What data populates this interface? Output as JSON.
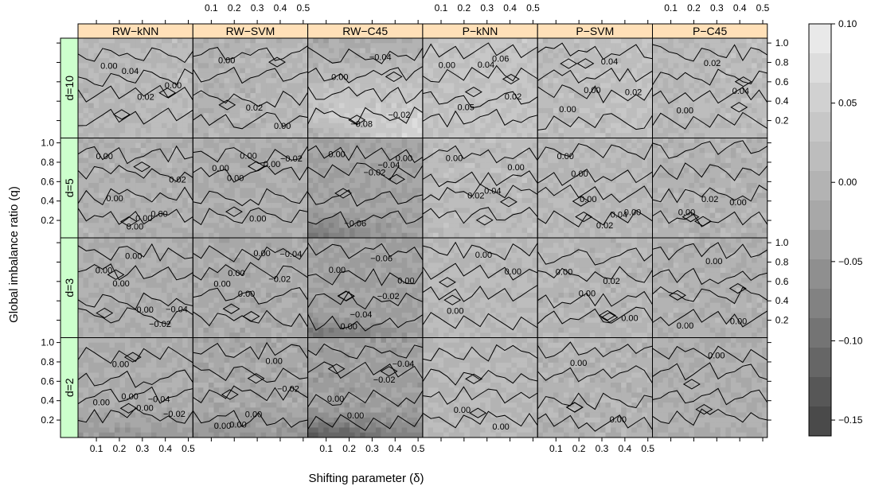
{
  "chart_data": {
    "type": "heatmap",
    "subtype": "trellis-levelplot-with-contours",
    "xlabel": "Shifting parameter (δ)",
    "ylabel": "Global imbalance ratio (q)",
    "x_ticks": [
      "0.1",
      "0.2",
      "0.3",
      "0.4",
      "0.5"
    ],
    "x_tick_values": [
      0.1,
      0.2,
      0.3,
      0.4,
      0.5
    ],
    "y_ticks": [
      "0.2",
      "0.4",
      "0.6",
      "0.8",
      "1.0"
    ],
    "y_tick_values": [
      0.2,
      0.4,
      0.6,
      0.8,
      1.0
    ],
    "xlim": [
      0.02,
      0.52
    ],
    "ylim": [
      0.02,
      1.05
    ],
    "columns": [
      "RW−kNN",
      "RW−SVM",
      "RW−C45",
      "P−kNN",
      "P−SVM",
      "P−C45"
    ],
    "rows": [
      "d=10",
      "d=5",
      "d=3",
      "d=2"
    ],
    "colorbar": {
      "ticks": [
        "0.10",
        "0.05",
        "0.00",
        "−0.05",
        "−0.10",
        "−0.15"
      ],
      "tick_values": [
        0.1,
        0.05,
        0.0,
        -0.05,
        -0.1,
        -0.15
      ],
      "range": [
        -0.16,
        0.1
      ],
      "colors": [
        "#e9e9e9",
        "#dddddd",
        "#d1d1d1",
        "#c7c7c7",
        "#bdbdbd",
        "#b3b3b3",
        "#a8a8a8",
        "#9c9c9c",
        "#8f8f8f",
        "#828282",
        "#747474",
        "#666666",
        "#575757",
        "#4a4a4a"
      ]
    },
    "panels": [
      {
        "row": "d=10",
        "column": "RW−kNN",
        "contour_labels": [
          "0.00",
          "0.04",
          "0.02",
          "0.00"
        ]
      },
      {
        "row": "d=10",
        "column": "RW−SVM",
        "contour_labels": [
          "0.00",
          "0.02",
          "0.00"
        ]
      },
      {
        "row": "d=10",
        "column": "RW−C45",
        "contour_labels": [
          "0.00",
          "−0.08",
          "−0.04",
          "−0.02"
        ]
      },
      {
        "row": "d=10",
        "column": "P−kNN",
        "contour_labels": [
          "0.00",
          "0.05",
          "0.04",
          "0.06",
          "0.02"
        ]
      },
      {
        "row": "d=10",
        "column": "P−SVM",
        "contour_labels": [
          "0.00",
          "0.00",
          "0.04",
          "0.02"
        ]
      },
      {
        "row": "d=10",
        "column": "P−C45",
        "contour_labels": [
          "0.00",
          "0.02",
          "0.04"
        ]
      },
      {
        "row": "d=5",
        "column": "RW−kNN",
        "contour_labels": [
          "0.00",
          "0.00",
          "0.00",
          "0.00",
          "0.00",
          "0.02"
        ]
      },
      {
        "row": "d=5",
        "column": "RW−SVM",
        "contour_labels": [
          "0.00",
          "0.00",
          "0.00",
          "0.00",
          "0.00",
          "−0.02"
        ]
      },
      {
        "row": "d=5",
        "column": "RW−C45",
        "contour_labels": [
          "0.00",
          "−0.06",
          "−0.02",
          "−0.04",
          "0.00"
        ]
      },
      {
        "row": "d=5",
        "column": "P−kNN",
        "contour_labels": [
          "0.00",
          "0.02",
          "0.04",
          "0.00"
        ]
      },
      {
        "row": "d=5",
        "column": "P−SVM",
        "contour_labels": [
          "0.00",
          "0.00",
          "0.00",
          "0.02",
          "0.04",
          "0.00"
        ]
      },
      {
        "row": "d=5",
        "column": "P−C45",
        "contour_labels": [
          "0.00",
          "0.02",
          "0.00"
        ]
      },
      {
        "row": "d=3",
        "column": "RW−kNN",
        "contour_labels": [
          "0.00",
          "0.00",
          "0.00",
          "0.00",
          "−0.02",
          "−0.04"
        ]
      },
      {
        "row": "d=3",
        "column": "RW−SVM",
        "contour_labels": [
          "0.00",
          "0.00",
          "0.00",
          "0.00",
          "−0.02",
          "−0.04"
        ]
      },
      {
        "row": "d=3",
        "column": "RW−C45",
        "contour_labels": [
          "0.00",
          "0.00",
          "−0.04",
          "−0.06",
          "−0.02",
          "0.00"
        ]
      },
      {
        "row": "d=3",
        "column": "P−kNN",
        "contour_labels": [
          "0.00",
          "0.00",
          "0.00"
        ]
      },
      {
        "row": "d=3",
        "column": "P−SVM",
        "contour_labels": [
          "0.00",
          "0.00",
          "0.02",
          "0.00"
        ]
      },
      {
        "row": "d=3",
        "column": "P−C45",
        "contour_labels": [
          "0.00",
          "0.00",
          "0.00"
        ]
      },
      {
        "row": "d=2",
        "column": "RW−kNN",
        "contour_labels": [
          "0.00",
          "0.00",
          "0.00",
          "0.00",
          "−0.04",
          "−0.02"
        ]
      },
      {
        "row": "d=2",
        "column": "RW−SVM",
        "contour_labels": [
          "0.00",
          "0.00",
          "0.00",
          "0.00",
          "−0.02"
        ]
      },
      {
        "row": "d=2",
        "column": "RW−C45",
        "contour_labels": [
          "0.00",
          "0.00",
          "−0.02",
          "−0.04"
        ]
      },
      {
        "row": "d=2",
        "column": "P−kNN",
        "contour_labels": [
          "0.00",
          "0.00"
        ]
      },
      {
        "row": "d=2",
        "column": "P−SVM",
        "contour_labels": [
          "0.00",
          "0.00"
        ]
      },
      {
        "row": "d=2",
        "column": "P−C45",
        "contour_labels": [
          "0.00"
        ]
      }
    ]
  }
}
